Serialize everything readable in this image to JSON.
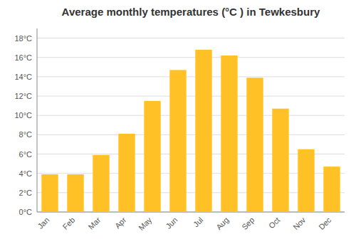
{
  "chart_data": {
    "type": "bar",
    "title": "Average monthly temperatures (°C ) in Tewkesbury",
    "categories": [
      "Jan",
      "Feb",
      "Mar",
      "Apr",
      "May",
      "Jun",
      "Jul",
      "Aug",
      "Sep",
      "Oct",
      "Nov",
      "Dec"
    ],
    "values": [
      3.9,
      3.9,
      5.9,
      8.1,
      11.5,
      14.7,
      16.8,
      16.2,
      13.9,
      10.7,
      6.5,
      4.7
    ],
    "color": "#FFC125",
    "ylim": [
      0,
      19
    ],
    "yticks": [
      {
        "value": 0,
        "label": "0°C"
      },
      {
        "value": 2,
        "label": "2°C"
      },
      {
        "value": 4,
        "label": "4°C"
      },
      {
        "value": 6,
        "label": "6°C"
      },
      {
        "value": 8,
        "label": "8°C"
      },
      {
        "value": 10,
        "label": "10°C"
      },
      {
        "value": 12,
        "label": "12°C"
      },
      {
        "value": 14,
        "label": "14°C"
      },
      {
        "value": 16,
        "label": "16°C"
      },
      {
        "value": 18,
        "label": "18°C"
      }
    ],
    "grid": true
  }
}
